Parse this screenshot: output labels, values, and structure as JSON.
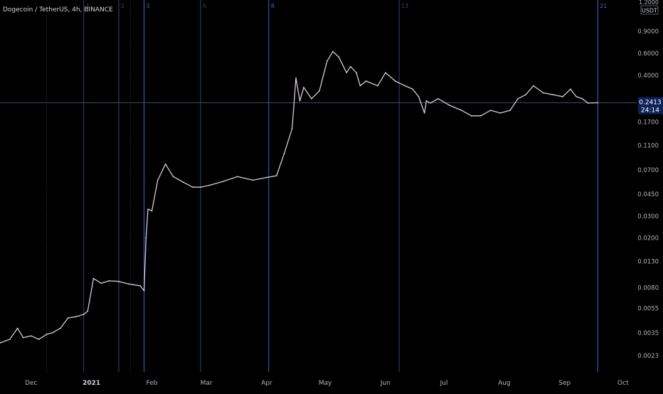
{
  "header": {
    "title": "Dogecoin / TetherUS, 4h, BINANCE",
    "top_axis_label": "1.2000",
    "currency": "USDT"
  },
  "price_label": {
    "value": "0.2413",
    "countdown": "24:14"
  },
  "colors": {
    "background": "#000000",
    "price_line": "#d9c8dc",
    "marker_line": "#2a6fc9",
    "faint_marker": "#2c4a72",
    "axis_text": "#b2b5be",
    "label_bg": "#2962ff"
  },
  "chart_data": {
    "type": "line",
    "title": "Dogecoin / TetherUS, 4h, BINANCE",
    "x_type": "date",
    "y_scale": "log",
    "ylim": [
      0.0017,
      1.2
    ],
    "xlim": [
      "2020-11-15",
      "2021-10-08"
    ],
    "x_ticks": [
      {
        "label": "Dec",
        "date": "2020-12-01"
      },
      {
        "label": "2021",
        "date": "2021-01-01"
      },
      {
        "label": "Feb",
        "date": "2021-02-01"
      },
      {
        "label": "Mar",
        "date": "2021-03-01"
      },
      {
        "label": "Apr",
        "date": "2021-04-01"
      },
      {
        "label": "May",
        "date": "2021-05-01"
      },
      {
        "label": "Jun",
        "date": "2021-06-01"
      },
      {
        "label": "Jul",
        "date": "2021-07-01"
      },
      {
        "label": "Aug",
        "date": "2021-08-01"
      },
      {
        "label": "Sep",
        "date": "2021-09-01"
      },
      {
        "label": "Oct",
        "date": "2021-10-01"
      }
    ],
    "y_ticks": [
      "0.9000",
      "0.6000",
      "0.4000",
      "0.1700",
      "0.1100",
      "0.0700",
      "0.0450",
      "0.0300",
      "0.0200",
      "0.0130",
      "0.0080",
      "0.0055",
      "0.0035",
      "0.0023"
    ],
    "markers": [
      {
        "label": "1",
        "date": "2020-12-28",
        "style": "faint"
      },
      {
        "label": "2",
        "date": "2021-01-15",
        "style": "faint"
      },
      {
        "label": "3",
        "date": "2021-01-28",
        "style": "strong"
      },
      {
        "label": "5",
        "date": "2021-02-26",
        "style": "faint"
      },
      {
        "label": "8",
        "date": "2021-04-02",
        "style": "strong"
      },
      {
        "label": "13",
        "date": "2021-06-08",
        "style": "faint"
      },
      {
        "label": "21",
        "date": "2021-09-18",
        "style": "strong"
      }
    ],
    "faint_dotted_lines": [
      "2020-12-09",
      "2021-01-21"
    ],
    "current_price": 0.2413,
    "series": [
      {
        "x": [
          "2020-11-15",
          "2020-11-20",
          "2020-11-24",
          "2020-11-27",
          "2020-12-01",
          "2020-12-05",
          "2020-12-09",
          "2020-12-12",
          "2020-12-16",
          "2020-12-20",
          "2020-12-24",
          "2020-12-28",
          "2020-12-30",
          "2021-01-02",
          "2021-01-06",
          "2021-01-10",
          "2021-01-15",
          "2021-01-20",
          "2021-01-26",
          "2021-01-28",
          "2021-01-29",
          "2021-01-30",
          "2021-02-01",
          "2021-02-04",
          "2021-02-08",
          "2021-02-12",
          "2021-02-17",
          "2021-02-22",
          "2021-02-26",
          "2021-03-03",
          "2021-03-10",
          "2021-03-17",
          "2021-03-25",
          "2021-04-01",
          "2021-04-06",
          "2021-04-10",
          "2021-04-14",
          "2021-04-16",
          "2021-04-18",
          "2021-04-20",
          "2021-04-24",
          "2021-04-28",
          "2021-05-02",
          "2021-05-05",
          "2021-05-08",
          "2021-05-12",
          "2021-05-14",
          "2021-05-17",
          "2021-05-19",
          "2021-05-22",
          "2021-05-28",
          "2021-06-01",
          "2021-06-06",
          "2021-06-11",
          "2021-06-15",
          "2021-06-18",
          "2021-06-21",
          "2021-06-22",
          "2021-06-24",
          "2021-06-28",
          "2021-07-04",
          "2021-07-10",
          "2021-07-15",
          "2021-07-20",
          "2021-07-25",
          "2021-07-30",
          "2021-08-04",
          "2021-08-08",
          "2021-08-12",
          "2021-08-16",
          "2021-08-21",
          "2021-08-26",
          "2021-08-31",
          "2021-09-04",
          "2021-09-07",
          "2021-09-10",
          "2021-09-13",
          "2021-09-18"
        ],
        "y": [
          0.0029,
          0.0031,
          0.0038,
          0.0032,
          0.0033,
          0.0031,
          0.0034,
          0.0035,
          0.0038,
          0.0046,
          0.0047,
          0.0049,
          0.0052,
          0.0095,
          0.0087,
          0.0091,
          0.009,
          0.0086,
          0.0083,
          0.0076,
          0.02,
          0.034,
          0.033,
          0.058,
          0.078,
          0.062,
          0.056,
          0.051,
          0.051,
          0.053,
          0.057,
          0.062,
          0.058,
          0.061,
          0.063,
          0.095,
          0.15,
          0.38,
          0.25,
          0.32,
          0.26,
          0.3,
          0.52,
          0.62,
          0.56,
          0.42,
          0.47,
          0.42,
          0.33,
          0.36,
          0.33,
          0.42,
          0.36,
          0.33,
          0.31,
          0.27,
          0.2,
          0.25,
          0.24,
          0.26,
          0.23,
          0.21,
          0.19,
          0.19,
          0.21,
          0.2,
          0.21,
          0.26,
          0.28,
          0.33,
          0.29,
          0.28,
          0.27,
          0.31,
          0.27,
          0.26,
          0.24,
          0.2413
        ]
      }
    ]
  }
}
